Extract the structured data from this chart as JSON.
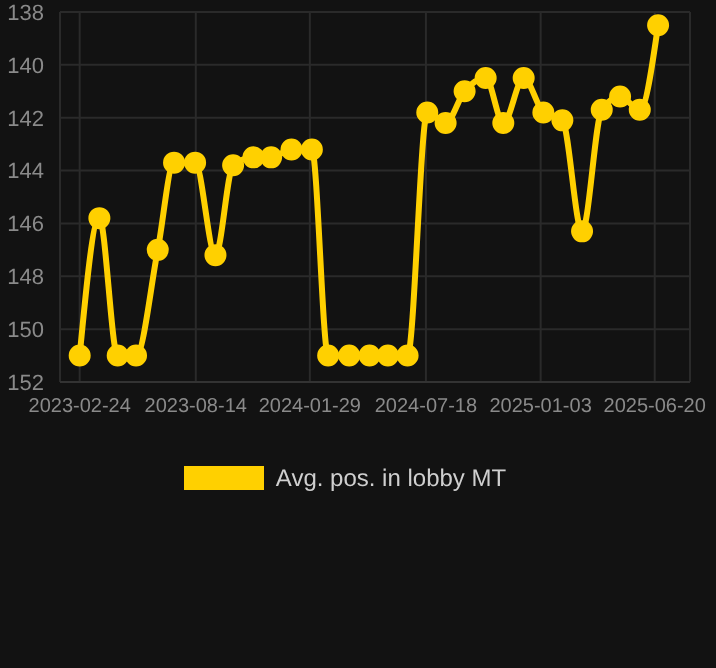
{
  "chart_data": {
    "type": "line",
    "x": [
      "2023-02-24",
      "2023-03-25",
      "2023-04-21",
      "2023-05-18",
      "2023-06-19",
      "2023-07-13",
      "2023-08-13",
      "2023-09-12",
      "2023-10-08",
      "2023-11-07",
      "2023-12-03",
      "2024-01-02",
      "2024-02-01",
      "2024-02-25",
      "2024-03-27",
      "2024-04-26",
      "2024-05-23",
      "2024-06-21",
      "2024-07-20",
      "2024-08-16",
      "2024-09-13",
      "2024-10-14",
      "2024-11-09",
      "2024-12-09",
      "2025-01-07",
      "2025-02-04",
      "2025-03-05",
      "2025-04-03",
      "2025-04-30",
      "2025-05-29",
      "2025-06-25"
    ],
    "series": [
      {
        "name": "Avg. pos. in lobby MT",
        "color": "#ffd000",
        "values": [
          151,
          145.8,
          151,
          151,
          147,
          143.7,
          143.7,
          147.2,
          143.8,
          143.5,
          143.5,
          143.2,
          143.2,
          151,
          151,
          151,
          151,
          151,
          141.8,
          142.2,
          141,
          140.5,
          142.2,
          140.5,
          141.8,
          142.1,
          146.3,
          141.7,
          141.2,
          141.7,
          138.5
        ]
      }
    ],
    "xlim": [
      "2023-01-26",
      "2025-08-11"
    ],
    "xticks": [
      "2023-02-24",
      "2023-08-14",
      "2024-01-29",
      "2024-07-18",
      "2025-01-03",
      "2025-06-20"
    ],
    "ylim": [
      152,
      138
    ],
    "yticks": [
      138,
      140,
      142,
      144,
      146,
      148,
      150,
      152
    ],
    "grid": true,
    "legend": "bottom",
    "marker": "circle",
    "line_style": "solid"
  }
}
